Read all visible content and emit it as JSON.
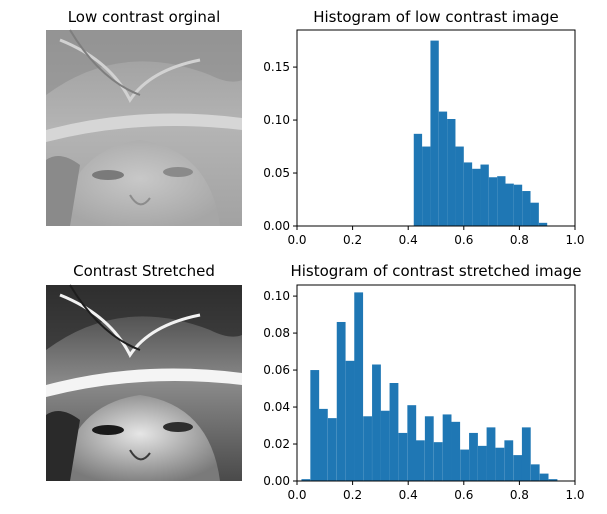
{
  "panels": {
    "top_left_title": "Low contrast orginal",
    "bottom_left_title": "Contrast Stretched",
    "colors": {
      "bar": "#1f77b4",
      "axis": "#000000",
      "background": "#ffffff"
    }
  },
  "chart_data": [
    {
      "type": "bar",
      "title": "Histogram of low contrast image",
      "xlabel": "",
      "ylabel": "",
      "xlim": [
        0.0,
        1.0
      ],
      "ylim": [
        0.0,
        0.185
      ],
      "xticks": [
        "0.0",
        "0.2",
        "0.4",
        "0.6",
        "0.8",
        "1.0"
      ],
      "yticks": [
        "0.00",
        "0.05",
        "0.10",
        "0.15"
      ],
      "bin_width": 0.03,
      "bins": [
        0.42,
        0.45,
        0.48,
        0.51,
        0.54,
        0.57,
        0.6,
        0.63,
        0.66,
        0.69,
        0.72,
        0.75,
        0.78,
        0.81,
        0.84,
        0.87
      ],
      "values": [
        0.087,
        0.075,
        0.175,
        0.108,
        0.101,
        0.075,
        0.06,
        0.054,
        0.058,
        0.046,
        0.047,
        0.04,
        0.039,
        0.033,
        0.022,
        0.003
      ],
      "grid": false
    },
    {
      "type": "bar",
      "title": "Histogram of contrast stretched image",
      "xlabel": "",
      "ylabel": "",
      "xlim": [
        0.0,
        1.0
      ],
      "ylim": [
        0.0,
        0.106
      ],
      "xticks": [
        "0.0",
        "0.2",
        "0.4",
        "0.6",
        "0.8",
        "1.0"
      ],
      "yticks": [
        "0.00",
        "0.02",
        "0.04",
        "0.06",
        "0.08",
        "0.10"
      ],
      "bin_width": 0.0317,
      "bins": [
        0.016,
        0.048,
        0.079,
        0.111,
        0.143,
        0.175,
        0.206,
        0.238,
        0.27,
        0.301,
        0.333,
        0.365,
        0.397,
        0.428,
        0.46,
        0.492,
        0.524,
        0.555,
        0.587,
        0.619,
        0.651,
        0.682,
        0.714,
        0.746,
        0.778,
        0.809,
        0.841,
        0.873,
        0.905,
        0.936
      ],
      "values": [
        0.001,
        0.06,
        0.039,
        0.034,
        0.086,
        0.065,
        0.102,
        0.035,
        0.063,
        0.038,
        0.053,
        0.026,
        0.041,
        0.022,
        0.035,
        0.021,
        0.036,
        0.032,
        0.017,
        0.026,
        0.019,
        0.029,
        0.018,
        0.022,
        0.014,
        0.029,
        0.009,
        0.004,
        0.001,
        0.0
      ],
      "grid": false
    }
  ]
}
